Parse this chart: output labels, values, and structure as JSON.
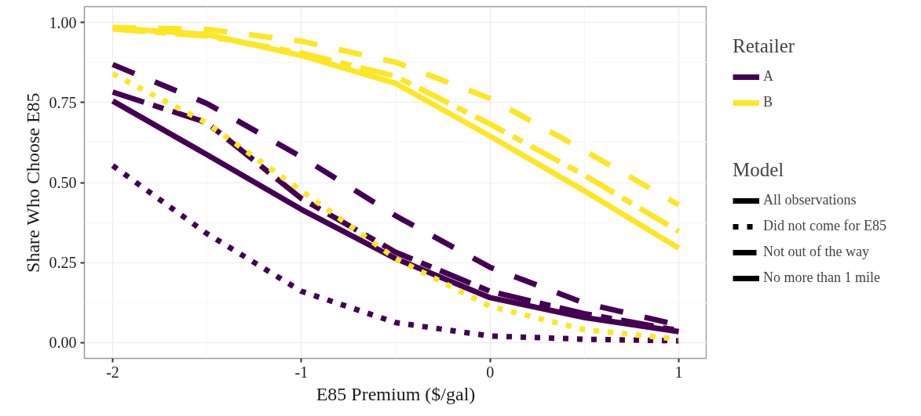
{
  "chart_data": {
    "type": "line",
    "xlabel": "E85 Premium ($/gal)",
    "ylabel": "Share Who Choose E85",
    "legend_title": "Retailer",
    "x": [
      -2,
      -1.5,
      -1,
      -0.5,
      0,
      0.5,
      1
    ],
    "series": [
      {
        "name": "A",
        "color": "#440154",
        "line_style": "solid",
        "values": [
          0.755,
          0.587,
          0.416,
          0.262,
          0.14,
          0.078,
          0.034
        ]
      },
      {
        "color": "#440154",
        "line_style": "dotted",
        "values": [
          0.553,
          0.34,
          0.16,
          0.062,
          0.02,
          0.01,
          0.005
        ]
      },
      {
        "color": "#440154",
        "line_style": "dashed",
        "values": [
          0.869,
          0.747,
          0.58,
          0.396,
          0.235,
          0.123,
          0.054
        ]
      },
      {
        "color": "#440154",
        "line_style": "dashdot",
        "values": [
          0.783,
          0.687,
          0.45,
          0.282,
          0.16,
          0.09,
          0.037
        ]
      },
      {
        "name": "B",
        "color": "#fde725",
        "line_style": "solid",
        "values": [
          0.983,
          0.963,
          0.897,
          0.81,
          0.645,
          0.474,
          0.295
        ]
      },
      {
        "color": "#fde725",
        "line_style": "dotted",
        "values": [
          0.84,
          0.686,
          0.474,
          0.262,
          0.113,
          0.04,
          0.01
        ]
      },
      {
        "color": "#fde725",
        "line_style": "dashed",
        "values": [
          0.985,
          0.979,
          0.942,
          0.876,
          0.763,
          0.6,
          0.43
        ]
      },
      {
        "color": "#fde725",
        "line_style": "dashdot",
        "values": [
          0.98,
          0.958,
          0.905,
          0.832,
          0.683,
          0.523,
          0.347
        ]
      }
    ],
    "annotations": [
      "Model",
      "All observations",
      "Did not come for E85",
      "Not out of the way",
      "No more than 1 mile"
    ],
    "xlim": [
      -2.15,
      1.15
    ],
    "ylim": [
      -0.05,
      1.05
    ],
    "xticks": [
      -2,
      -1,
      0,
      1
    ],
    "yticks": [
      {
        "value": 0,
        "label": "0.00"
      },
      {
        "value": 0.25,
        "label": "0.25"
      },
      {
        "value": 0.5,
        "label": "0.50"
      },
      {
        "value": 0.75,
        "label": "0.75"
      },
      {
        "value": 1,
        "label": "1.00"
      }
    ],
    "grid": true,
    "legend": "right"
  }
}
